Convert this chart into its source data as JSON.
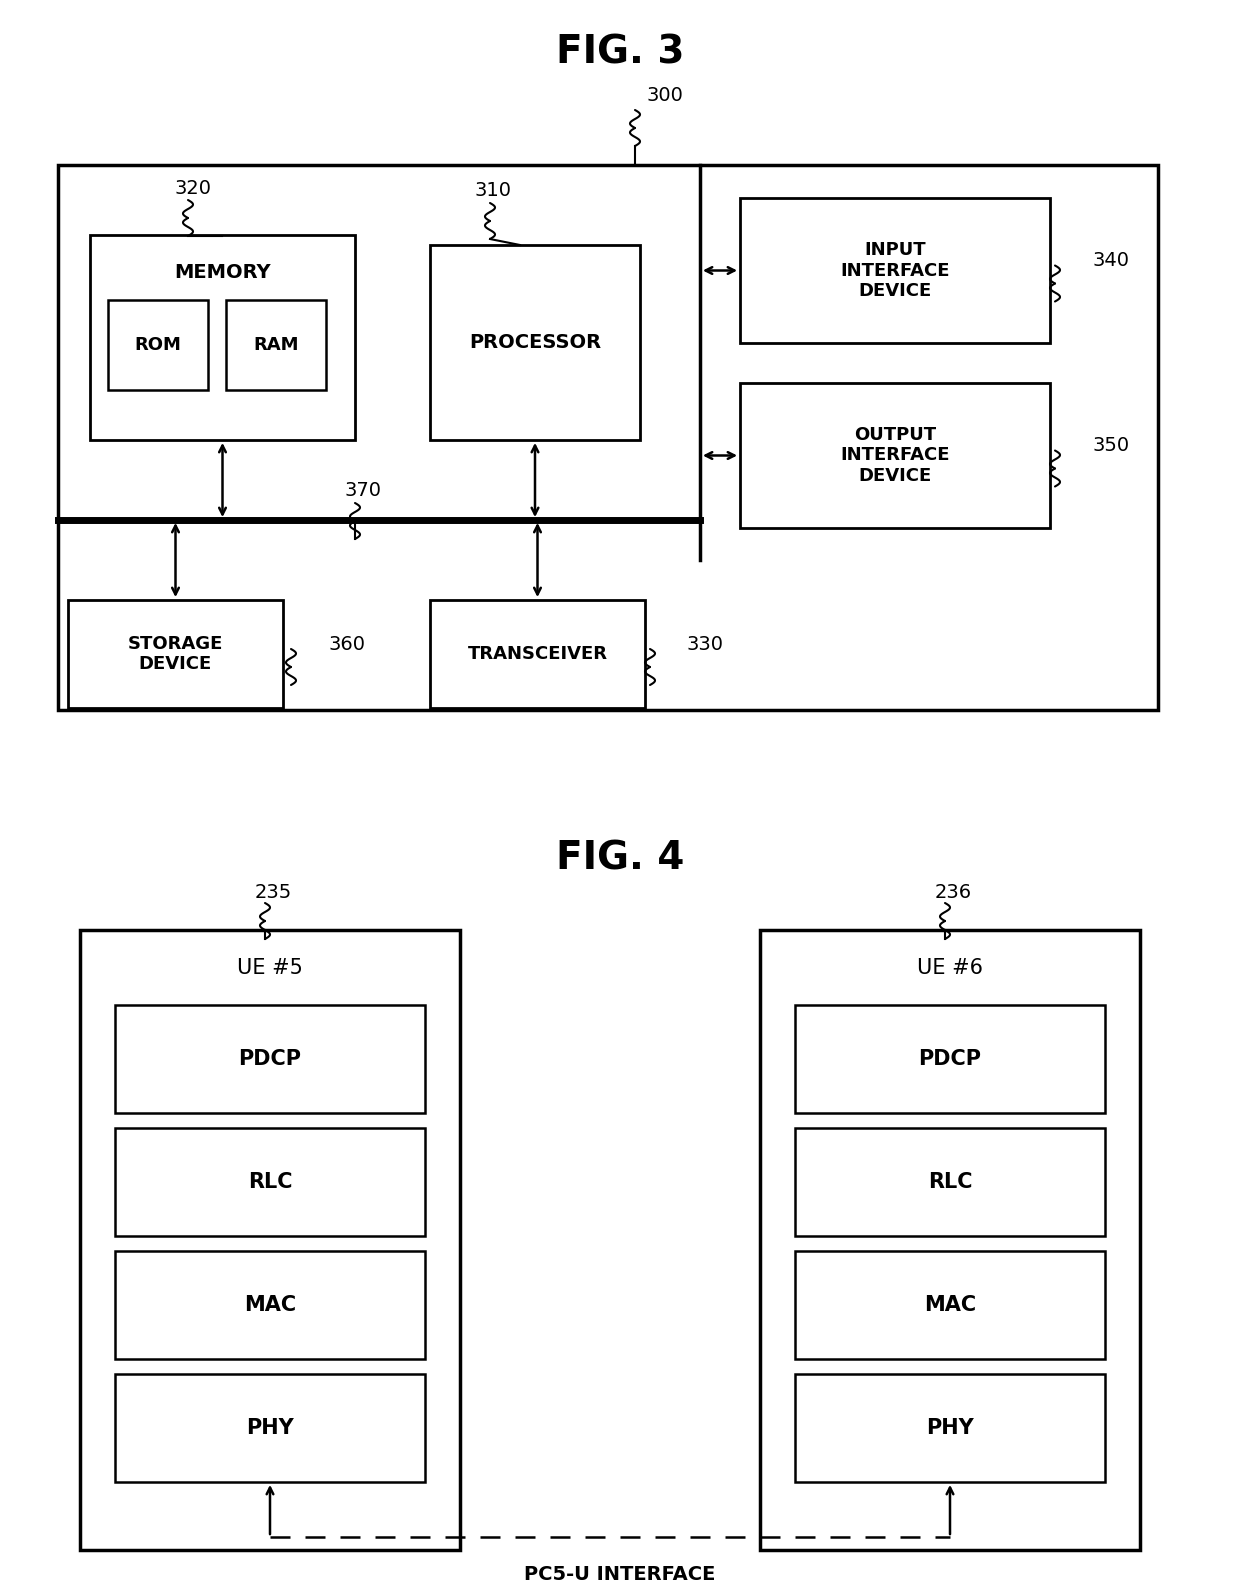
{
  "fig3_title": "FIG. 3",
  "fig4_title": "FIG. 4",
  "bg_color": "#ffffff",
  "line_color": "#000000",
  "fig3": {
    "label_300": "300",
    "label_320": "320",
    "label_310": "310",
    "label_340": "340",
    "label_350": "350",
    "label_360": "360",
    "label_330": "330",
    "label_370": "370",
    "memory_label": "MEMORY",
    "rom_label": "ROM",
    "ram_label": "RAM",
    "processor_label": "PROCESSOR",
    "input_label": "INPUT\nINTERFACE\nDEVICE",
    "output_label": "OUTPUT\nINTERFACE\nDEVICE",
    "storage_label": "STORAGE\nDEVICE",
    "transceiver_label": "TRANSCEIVER"
  },
  "fig4": {
    "label_235": "235",
    "label_236": "236",
    "ue5_label": "UE #5",
    "ue6_label": "UE #6",
    "layer_labels": [
      "PDCP",
      "RLC",
      "MAC",
      "PHY"
    ],
    "interface_label": "PC5-U INTERFACE"
  }
}
